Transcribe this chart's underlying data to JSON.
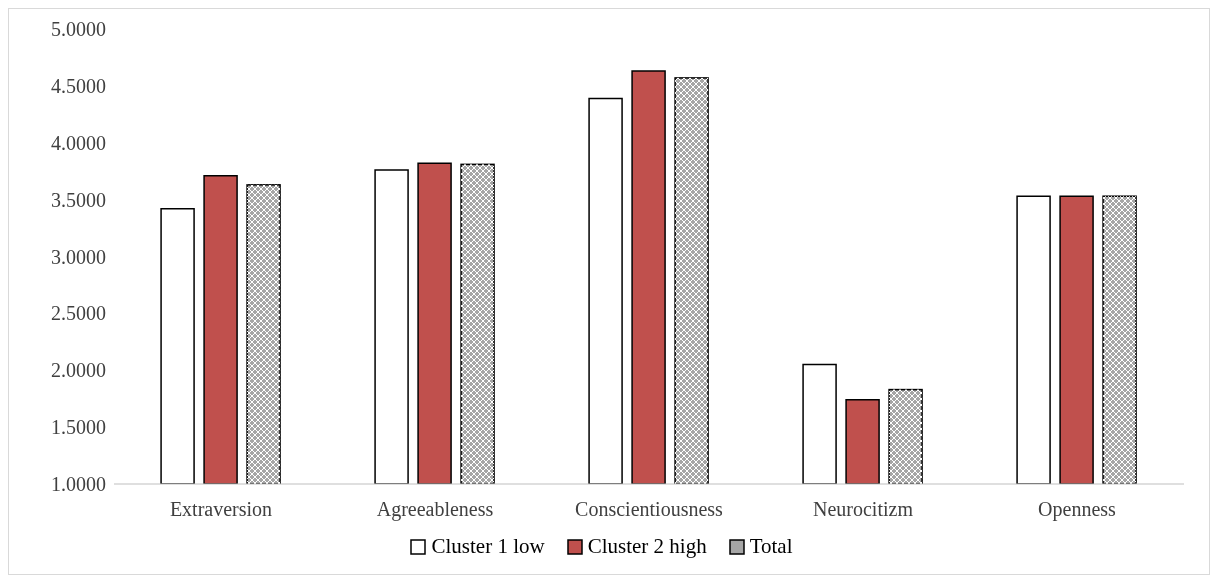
{
  "chart_data": {
    "type": "bar",
    "categories": [
      "Extraversion",
      "Agreeableness",
      "Conscientiousness",
      "Neurocitizm",
      "Openness"
    ],
    "series": [
      {
        "name": "Cluster 1 low",
        "color": "#ffffff",
        "values": [
          3.42,
          3.76,
          4.39,
          2.05,
          3.53
        ]
      },
      {
        "name": "Cluster 2 high",
        "color": "#c0504d",
        "values": [
          3.71,
          3.82,
          4.63,
          1.74,
          3.53
        ]
      },
      {
        "name": "Total",
        "color": "#a6a6a6",
        "values": [
          3.63,
          3.81,
          4.57,
          1.83,
          3.53
        ]
      }
    ],
    "ylim": [
      1,
      5
    ],
    "yticks": [
      {
        "value": 1,
        "label": "1.0000"
      },
      {
        "value": 1.5,
        "label": "1.5000"
      },
      {
        "value": 2,
        "label": "2.0000"
      },
      {
        "value": 2.5,
        "label": "2.5000"
      },
      {
        "value": 3,
        "label": "3.0000"
      },
      {
        "value": 3.5,
        "label": "3.5000"
      },
      {
        "value": 4,
        "label": "4.0000"
      },
      {
        "value": 4.5,
        "label": "4.5000"
      },
      {
        "value": 5,
        "label": "5.0000"
      }
    ],
    "grid": false,
    "legend": "bottom"
  }
}
